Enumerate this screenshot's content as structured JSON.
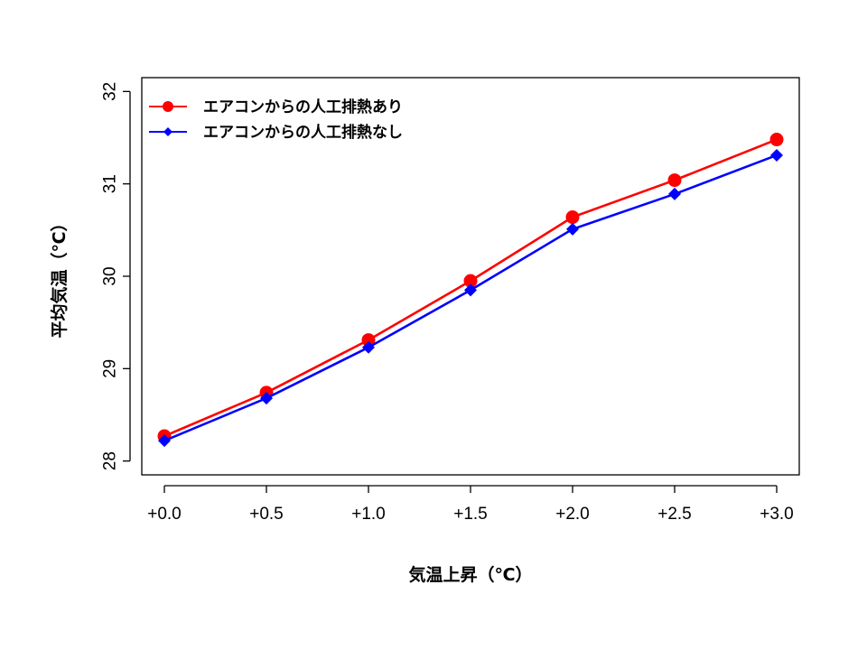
{
  "chart_data": {
    "type": "line",
    "title": "",
    "xlabel": "気温上昇（℃）",
    "ylabel": "平均気温（℃）",
    "categories": [
      "+0.0",
      "+0.5",
      "+1.0",
      "+1.5",
      "+2.0",
      "+2.5",
      "+3.0"
    ],
    "x": [
      0.0,
      0.5,
      1.0,
      1.5,
      2.0,
      2.5,
      3.0
    ],
    "ylim": [
      27.85,
      32.15
    ],
    "yticks": [
      28,
      29,
      30,
      31,
      32
    ],
    "grid": false,
    "legend_position": "top-left",
    "series": [
      {
        "name": "エアコンからの人工排熱あり",
        "color": "#ff0000",
        "marker": "circle",
        "values": [
          28.27,
          28.74,
          29.31,
          29.95,
          30.64,
          31.04,
          31.48
        ]
      },
      {
        "name": "エアコンからの人工排熱なし",
        "color": "#0000ff",
        "marker": "diamond",
        "values": [
          28.22,
          28.68,
          29.23,
          29.85,
          30.51,
          30.89,
          31.31
        ]
      }
    ]
  }
}
